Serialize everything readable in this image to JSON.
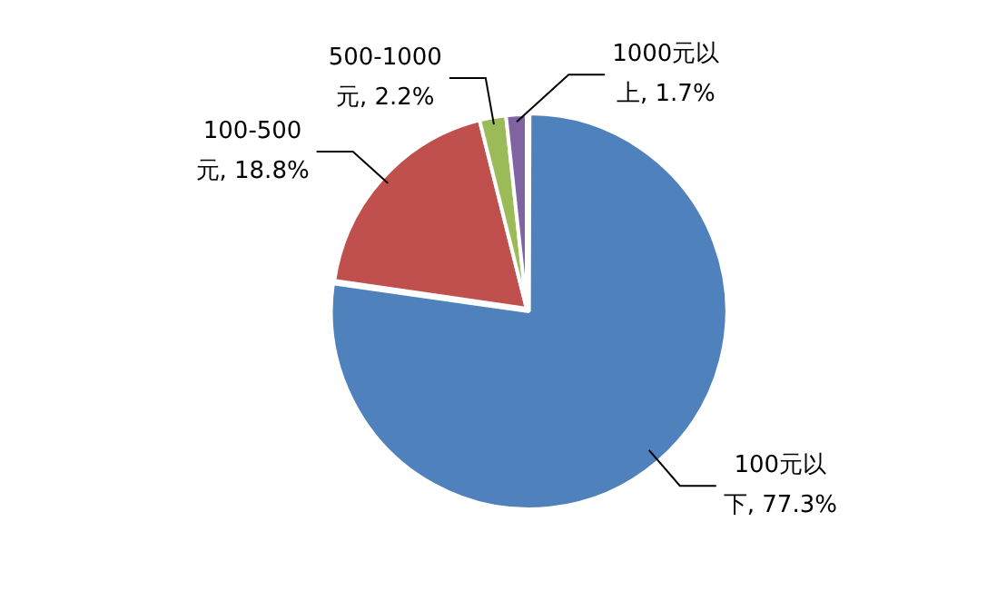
{
  "chart_data": {
    "type": "pie",
    "categories": [
      "100元以下",
      "100-500元",
      "500-1000元",
      "1000元以上"
    ],
    "values": [
      77.3,
      18.8,
      2.2,
      1.7
    ],
    "colors": [
      "#4f81bd",
      "#c0504d",
      "#9bbb59",
      "#8064a2"
    ],
    "value_labels": [
      "77.3%",
      "18.8%",
      "2.2%",
      "1.7%"
    ],
    "legend": false
  }
}
